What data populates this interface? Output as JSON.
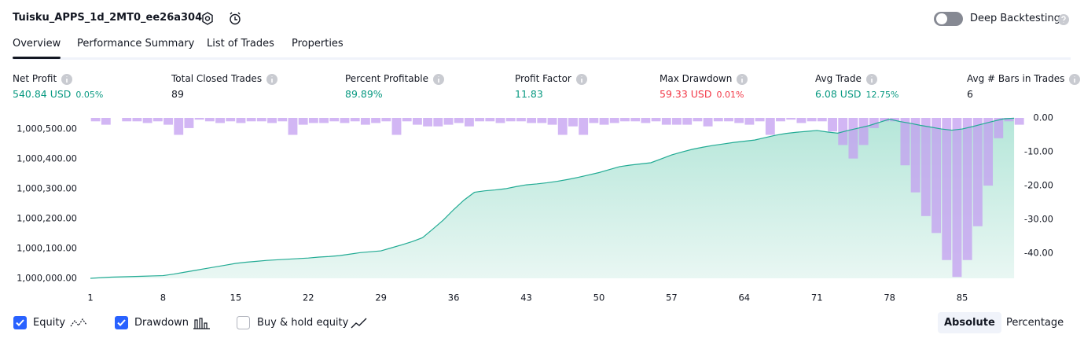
{
  "header": {
    "title": "Tuisku_APPS_1d_2MT0_ee26a304",
    "deep_backtesting": "Deep Backtesting"
  },
  "tabs": {
    "items": [
      "Overview",
      "Performance Summary",
      "List of Trades",
      "Properties"
    ],
    "active": 0
  },
  "metrics": [
    {
      "label": "Net Profit",
      "value": "540.84 USD",
      "change": "0.05%",
      "tone": "positive"
    },
    {
      "label": "Total Closed Trades",
      "value": "89",
      "tone": "neutral"
    },
    {
      "label": "Percent Profitable",
      "value": "89.89%",
      "tone": "positive"
    },
    {
      "label": "Profit Factor",
      "value": "11.83",
      "tone": "positive"
    },
    {
      "label": "Max Drawdown",
      "value": "59.33 USD",
      "change": "0.01%",
      "tone": "negative"
    },
    {
      "label": "Avg Trade",
      "value": "6.08 USD",
      "change": "12.75%",
      "tone": "positive"
    },
    {
      "label": "Avg # Bars in Trades",
      "value": "6",
      "tone": "neutral"
    }
  ],
  "chart_data": {
    "type": "line",
    "x": [
      1,
      2,
      3,
      4,
      5,
      6,
      7,
      8,
      9,
      10,
      11,
      12,
      13,
      14,
      15,
      16,
      17,
      18,
      19,
      20,
      21,
      22,
      23,
      24,
      25,
      26,
      27,
      28,
      29,
      30,
      31,
      32,
      33,
      34,
      35,
      36,
      37,
      38,
      39,
      40,
      41,
      42,
      43,
      44,
      45,
      46,
      47,
      48,
      49,
      50,
      51,
      52,
      53,
      54,
      55,
      56,
      57,
      58,
      59,
      60,
      61,
      62,
      63,
      64,
      65,
      66,
      67,
      68,
      69,
      70,
      71,
      72,
      73,
      74,
      75,
      76,
      77,
      78,
      79,
      80,
      81,
      82,
      83,
      84,
      85,
      86,
      87,
      88,
      89,
      90
    ],
    "series": [
      {
        "name": "Equity",
        "color": "#22ab94",
        "axis": "y",
        "checked": true,
        "values": [
          1000000,
          1000002,
          1000004,
          1000005,
          1000006,
          1000007,
          1000008,
          1000009,
          1000014,
          1000020,
          1000026,
          1000032,
          1000038,
          1000044,
          1000050,
          1000054,
          1000057,
          1000060,
          1000062,
          1000064,
          1000066,
          1000068,
          1000071,
          1000073,
          1000076,
          1000081,
          1000086,
          1000089,
          1000092,
          1000102,
          1000112,
          1000123,
          1000136,
          1000165,
          1000195,
          1000230,
          1000262,
          1000288,
          1000293,
          1000296,
          1000300,
          1000307,
          1000313,
          1000316,
          1000320,
          1000325,
          1000331,
          1000338,
          1000346,
          1000354,
          1000364,
          1000374,
          1000379,
          1000383,
          1000387,
          1000400,
          1000413,
          1000423,
          1000432,
          1000439,
          1000445,
          1000450,
          1000455,
          1000459,
          1000463,
          1000471,
          1000479,
          1000485,
          1000489,
          1000492,
          1000495,
          1000490,
          1000486,
          1000495,
          1000503,
          1000511,
          1000522,
          1000533,
          1000525,
          1000519,
          1000512,
          1000506,
          1000500,
          1000496,
          1000500,
          1000508,
          1000517,
          1000526,
          1000534,
          1000536
        ]
      },
      {
        "name": "Drawdown",
        "color": "#c39ef0",
        "axis": "y2",
        "type": "bar",
        "checked": true,
        "values": [
          -1,
          -2,
          0,
          -1,
          -1,
          -1.5,
          -1,
          -2,
          -5,
          -3,
          -0.5,
          -1,
          -1.5,
          -1,
          -1.5,
          -1,
          -1,
          -1.5,
          -1,
          -5,
          -2,
          -1.5,
          -1.5,
          -1,
          -1.5,
          -1,
          -2,
          -1.5,
          -1,
          -5,
          -1,
          -2,
          -2.5,
          -2.5,
          -2,
          -1.5,
          -2.5,
          -1,
          -1,
          -1.5,
          -1,
          -1,
          -1.5,
          -1.5,
          -2,
          -5,
          -2.5,
          -5,
          -1.5,
          -2,
          -1.5,
          -1,
          -1,
          -1.5,
          -1,
          -2,
          -2,
          -2,
          -1,
          -2.5,
          -1,
          -1,
          -1.5,
          -2,
          -1,
          -5,
          -1,
          -0.5,
          -1.5,
          -1,
          -1,
          -4,
          -8,
          -12,
          -8,
          -3,
          -1,
          -1,
          -14,
          -22,
          -29,
          -34,
          -42,
          -47,
          -42,
          -32,
          -20,
          -6,
          -1,
          -2
        ]
      }
    ],
    "buy_hold_label": "Buy & hold equity",
    "buy_hold_checked": false,
    "xlim": [
      1,
      90.6
    ],
    "xticks": [
      1,
      8,
      15,
      22,
      29,
      36,
      43,
      50,
      57,
      64,
      71,
      78,
      85
    ],
    "ylim": [
      1000000,
      1000537
    ],
    "yticks": [
      {
        "value": 1000000,
        "label": "1,000,000.00"
      },
      {
        "value": 1000100,
        "label": "1,000,100.00"
      },
      {
        "value": 1000200,
        "label": "1,000,200.00"
      },
      {
        "value": 1000300,
        "label": "1,000,300.00"
      },
      {
        "value": 1000400,
        "label": "1,000,400.00"
      },
      {
        "value": 1000500,
        "label": "1,000,500.00"
      }
    ],
    "y2lim": [
      -47.4,
      0
    ],
    "y2ticks": [
      {
        "value": 0,
        "label": "0.00"
      },
      {
        "value": -10,
        "label": "-10.00"
      },
      {
        "value": -20,
        "label": "-20.00"
      },
      {
        "value": -30,
        "label": "-30.00"
      },
      {
        "value": -40,
        "label": "-40.00"
      }
    ]
  },
  "view_modes": {
    "items": [
      "Absolute",
      "Percentage"
    ],
    "active": 0
  }
}
